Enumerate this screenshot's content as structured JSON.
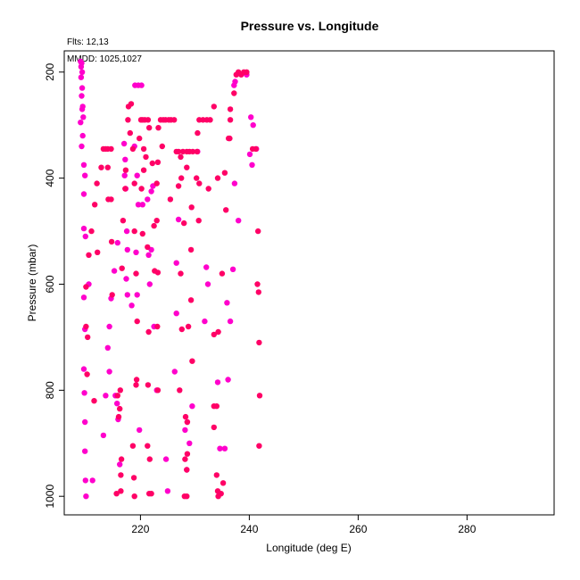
{
  "chart_data": {
    "type": "scatter",
    "title": "Pressure vs. Longitude",
    "xlabel": "Longitude (deg E)",
    "ylabel": "Pressure (mbar)",
    "xlim": [
      206,
      296
    ],
    "ylim": [
      1035,
      160
    ],
    "y_reversed": true,
    "xticks": [
      220,
      240,
      260,
      280
    ],
    "yticks": [
      200,
      400,
      600,
      800,
      1000
    ],
    "grid": false,
    "annotations": {
      "flts": "Flts: 12,13",
      "mmdd": "MMDD: 1025,1027"
    },
    "series": [
      {
        "color": "#ff00cc",
        "points": [
          [
            209.0,
            180
          ],
          [
            209.2,
            183
          ],
          [
            209.1,
            190
          ],
          [
            209.3,
            200
          ],
          [
            209.1,
            210
          ],
          [
            209.3,
            230
          ],
          [
            209.2,
            245
          ],
          [
            209.4,
            265
          ],
          [
            209.3,
            270
          ],
          [
            209.5,
            285
          ],
          [
            209.0,
            295
          ],
          [
            209.4,
            320
          ],
          [
            209.2,
            340
          ],
          [
            209.6,
            375
          ],
          [
            209.8,
            395
          ],
          [
            209.6,
            430
          ],
          [
            209.6,
            495
          ],
          [
            209.9,
            510
          ],
          [
            210.5,
            600
          ],
          [
            209.6,
            625
          ],
          [
            209.8,
            685
          ],
          [
            209.6,
            760
          ],
          [
            209.7,
            805
          ],
          [
            209.8,
            860
          ],
          [
            209.8,
            915
          ],
          [
            209.9,
            970
          ],
          [
            210.0,
            1000
          ],
          [
            211.2,
            970
          ],
          [
            213.2,
            885
          ],
          [
            213.6,
            810
          ],
          [
            214.3,
            765
          ],
          [
            214.0,
            720
          ],
          [
            214.3,
            680
          ],
          [
            214.6,
            627
          ],
          [
            215.2,
            575
          ],
          [
            215.8,
            522
          ],
          [
            215.4,
            810
          ],
          [
            215.7,
            825
          ],
          [
            215.9,
            855
          ],
          [
            216.2,
            940
          ],
          [
            217.0,
            335
          ],
          [
            217.2,
            365
          ],
          [
            217.1,
            395
          ],
          [
            217.3,
            420
          ],
          [
            217.5,
            500
          ],
          [
            217.6,
            535
          ],
          [
            217.4,
            590
          ],
          [
            217.6,
            620
          ],
          [
            218.4,
            640
          ],
          [
            219.0,
            225
          ],
          [
            219.6,
            225
          ],
          [
            220.2,
            225
          ],
          [
            218.9,
            340
          ],
          [
            219.4,
            395
          ],
          [
            219.6,
            450
          ],
          [
            219.2,
            540
          ],
          [
            219.4,
            620
          ],
          [
            219.8,
            875
          ],
          [
            221.3,
            440
          ],
          [
            220.4,
            450
          ],
          [
            222.0,
            425
          ],
          [
            222.3,
            415
          ],
          [
            221.5,
            545
          ],
          [
            221.7,
            600
          ],
          [
            222.0,
            535
          ],
          [
            222.5,
            680
          ],
          [
            223.0,
            800
          ],
          [
            224.7,
            930
          ],
          [
            225.0,
            990
          ],
          [
            226.6,
            655
          ],
          [
            226.3,
            765
          ],
          [
            226.6,
            560
          ],
          [
            227.0,
            478
          ],
          [
            228.6,
            860
          ],
          [
            229.0,
            900
          ],
          [
            228.2,
            875
          ],
          [
            228.5,
            950
          ],
          [
            229.5,
            830
          ],
          [
            230.5,
            350
          ],
          [
            232.1,
            568
          ],
          [
            232.4,
            600
          ],
          [
            231.8,
            670
          ],
          [
            234.2,
            785
          ],
          [
            234.6,
            910
          ],
          [
            235.5,
            910
          ],
          [
            236.1,
            780
          ],
          [
            235.9,
            635
          ],
          [
            236.5,
            670
          ],
          [
            237.0,
            572
          ],
          [
            237.2,
            225
          ],
          [
            237.4,
            218
          ],
          [
            239.5,
            205
          ],
          [
            240.3,
            285
          ],
          [
            240.7,
            300
          ],
          [
            240.1,
            355
          ],
          [
            241.3,
            345
          ],
          [
            240.5,
            375
          ],
          [
            238.0,
            480
          ],
          [
            237.3,
            410
          ]
        ]
      },
      {
        "color": "#ff0066",
        "points": [
          [
            210.0,
            605
          ],
          [
            210.0,
            680
          ],
          [
            210.3,
            700
          ],
          [
            210.2,
            770
          ],
          [
            210.5,
            545
          ],
          [
            211.0,
            500
          ],
          [
            211.5,
            820
          ],
          [
            212.1,
            540
          ],
          [
            211.6,
            450
          ],
          [
            212.0,
            410
          ],
          [
            212.8,
            380
          ],
          [
            213.2,
            345
          ],
          [
            213.6,
            345
          ],
          [
            214.0,
            345
          ],
          [
            214.6,
            345
          ],
          [
            214.6,
            440
          ],
          [
            214.7,
            520
          ],
          [
            214.1,
            440
          ],
          [
            214.0,
            380
          ],
          [
            214.8,
            620
          ],
          [
            215.8,
            810
          ],
          [
            216.3,
            800
          ],
          [
            216.2,
            835
          ],
          [
            216.0,
            850
          ],
          [
            215.6,
            995
          ],
          [
            216.4,
            990
          ],
          [
            216.4,
            960
          ],
          [
            216.5,
            930
          ],
          [
            216.6,
            570
          ],
          [
            216.8,
            480
          ],
          [
            217.2,
            420
          ],
          [
            217.3,
            385
          ],
          [
            217.7,
            290
          ],
          [
            217.8,
            265
          ],
          [
            218.3,
            260
          ],
          [
            218.1,
            315
          ],
          [
            218.6,
            345
          ],
          [
            218.9,
            410
          ],
          [
            218.9,
            500
          ],
          [
            219.2,
            580
          ],
          [
            219.4,
            670
          ],
          [
            219.2,
            790
          ],
          [
            219.3,
            780
          ],
          [
            218.6,
            905
          ],
          [
            218.8,
            965
          ],
          [
            218.9,
            1000
          ],
          [
            219.8,
            325
          ],
          [
            220.1,
            290
          ],
          [
            220.4,
            290
          ],
          [
            220.8,
            290
          ],
          [
            221.4,
            290
          ],
          [
            221.6,
            305
          ],
          [
            220.6,
            345
          ],
          [
            221.0,
            360
          ],
          [
            220.6,
            385
          ],
          [
            220.2,
            420
          ],
          [
            220.4,
            505
          ],
          [
            221.3,
            530
          ],
          [
            221.5,
            690
          ],
          [
            221.4,
            790
          ],
          [
            221.3,
            905
          ],
          [
            221.7,
            930
          ],
          [
            221.6,
            995
          ],
          [
            222.0,
            995
          ],
          [
            222.5,
            490
          ],
          [
            223.0,
            480
          ],
          [
            222.6,
            575
          ],
          [
            223.2,
            578
          ],
          [
            223.1,
            680
          ],
          [
            223.2,
            800
          ],
          [
            223.7,
            290
          ],
          [
            224.2,
            290
          ],
          [
            224.6,
            290
          ],
          [
            225.2,
            290
          ],
          [
            225.6,
            290
          ],
          [
            226.2,
            290
          ],
          [
            223.3,
            305
          ],
          [
            224.0,
            340
          ],
          [
            223.2,
            370
          ],
          [
            222.2,
            372
          ],
          [
            223.0,
            410
          ],
          [
            225.5,
            440
          ],
          [
            227.0,
            350
          ],
          [
            227.8,
            350
          ],
          [
            228.5,
            350
          ],
          [
            229.0,
            350
          ],
          [
            229.6,
            350
          ],
          [
            230.4,
            350
          ],
          [
            226.6,
            350
          ],
          [
            227.4,
            360
          ],
          [
            228.5,
            380
          ],
          [
            227.0,
            415
          ],
          [
            227.5,
            400
          ],
          [
            228.0,
            485
          ],
          [
            227.4,
            580
          ],
          [
            228.8,
            680
          ],
          [
            227.6,
            685
          ],
          [
            227.2,
            800
          ],
          [
            228.3,
            850
          ],
          [
            228.6,
            860
          ],
          [
            228.6,
            920
          ],
          [
            228.2,
            930
          ],
          [
            228.5,
            950
          ],
          [
            228.1,
            1000
          ],
          [
            228.5,
            1000
          ],
          [
            230.7,
            480
          ],
          [
            230.8,
            410
          ],
          [
            230.3,
            400
          ],
          [
            229.4,
            455
          ],
          [
            229.3,
            535
          ],
          [
            229.3,
            630
          ],
          [
            229.5,
            745
          ],
          [
            230.5,
            315
          ],
          [
            230.8,
            290
          ],
          [
            231.5,
            290
          ],
          [
            232.2,
            290
          ],
          [
            232.8,
            290
          ],
          [
            232.5,
            420
          ],
          [
            233.5,
            830
          ],
          [
            233.5,
            870
          ],
          [
            234.0,
            830
          ],
          [
            234.0,
            960
          ],
          [
            234.2,
            990
          ],
          [
            234.3,
            1000
          ],
          [
            234.8,
            995
          ],
          [
            235.2,
            975
          ],
          [
            233.5,
            695
          ],
          [
            234.3,
            690
          ],
          [
            235.0,
            580
          ],
          [
            235.5,
            390
          ],
          [
            235.7,
            460
          ],
          [
            236.2,
            325
          ],
          [
            236.5,
            270
          ],
          [
            236.5,
            290
          ],
          [
            236.4,
            325
          ],
          [
            237.2,
            240
          ],
          [
            237.6,
            205
          ],
          [
            238.0,
            200
          ],
          [
            239.0,
            200
          ],
          [
            239.5,
            200
          ],
          [
            240.6,
            345
          ],
          [
            241.2,
            345
          ],
          [
            241.6,
            500
          ],
          [
            241.5,
            600
          ],
          [
            241.7,
            615
          ],
          [
            241.8,
            710
          ],
          [
            241.9,
            810
          ],
          [
            241.8,
            905
          ],
          [
            238.5,
            205
          ],
          [
            233.5,
            265
          ],
          [
            234.2,
            400
          ]
        ]
      }
    ]
  }
}
